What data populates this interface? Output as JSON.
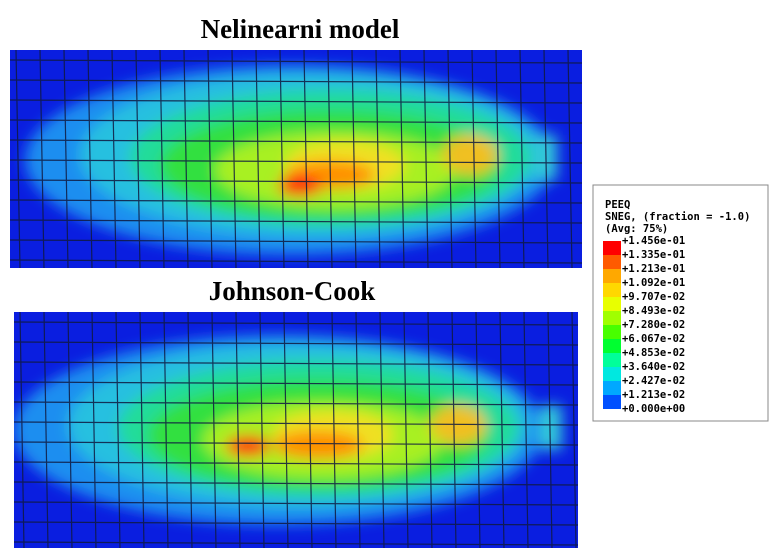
{
  "panels": [
    {
      "title": "Nelinearni model"
    },
    {
      "title": "Johnson-Cook"
    }
  ],
  "legend": {
    "variable": "PEEQ",
    "subtitle": "SNEG, (fraction = -1.0)",
    "averaging": "(Avg: 75%)",
    "levels": [
      "+1.456e-01",
      "+1.335e-01",
      "+1.213e-01",
      "+1.092e-01",
      "+9.707e-02",
      "+8.493e-02",
      "+7.280e-02",
      "+6.067e-02",
      "+4.853e-02",
      "+3.640e-02",
      "+2.427e-02",
      "+1.213e-02",
      "+0.000e+00"
    ]
  }
}
